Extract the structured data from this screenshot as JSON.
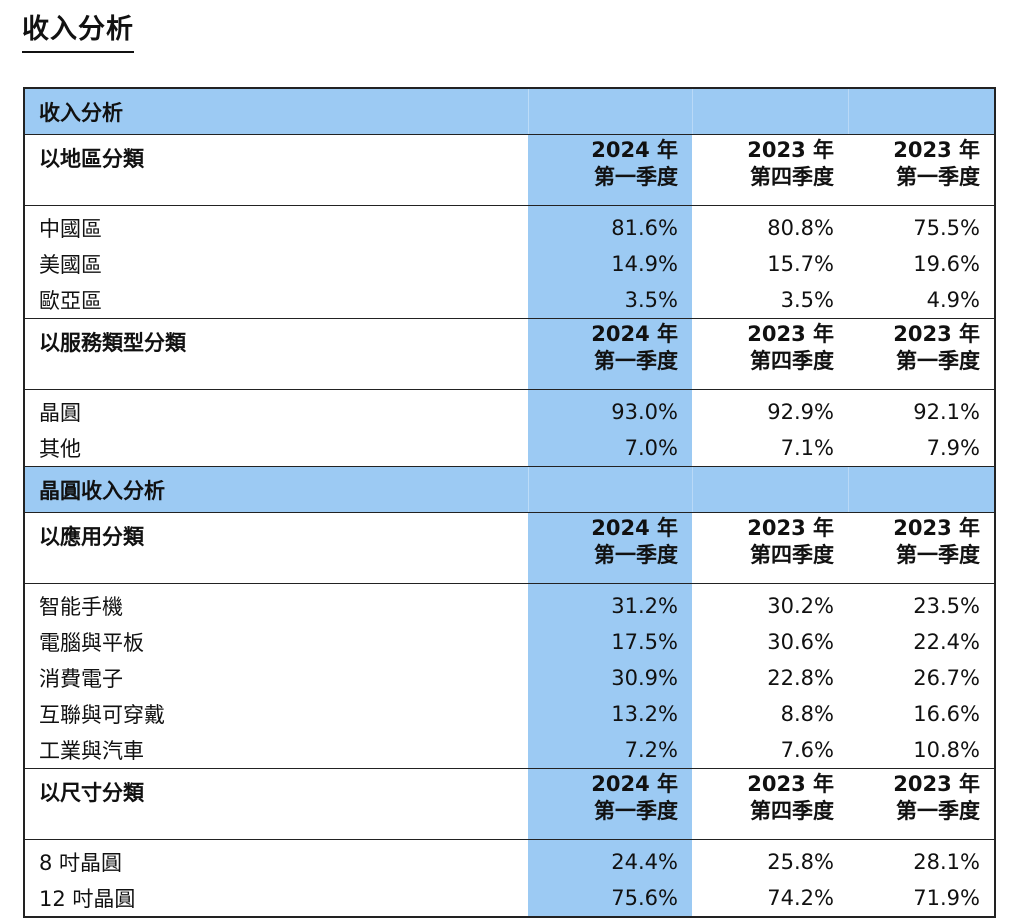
{
  "page_title": "收入分析",
  "period_headers": [
    {
      "year": "2024 年",
      "quarter": "第一季度"
    },
    {
      "year": "2023 年",
      "quarter": "第四季度"
    },
    {
      "year": "2023 年",
      "quarter": "第一季度"
    }
  ],
  "sections": [
    {
      "band": "收入分析",
      "groups": [
        {
          "label": "以地區分類",
          "rows": [
            {
              "label": "中國區",
              "values": [
                "81.6%",
                "80.8%",
                "75.5%"
              ]
            },
            {
              "label": "美國區",
              "values": [
                "14.9%",
                "15.7%",
                "19.6%"
              ]
            },
            {
              "label": "歐亞區",
              "values": [
                "3.5%",
                "3.5%",
                "4.9%"
              ]
            }
          ]
        },
        {
          "label": "以服務類型分類",
          "rows": [
            {
              "label": "晶圓",
              "values": [
                "93.0%",
                "92.9%",
                "92.1%"
              ]
            },
            {
              "label": "其他",
              "values": [
                "7.0%",
                "7.1%",
                "7.9%"
              ]
            }
          ]
        }
      ]
    },
    {
      "band": "晶圓收入分析",
      "groups": [
        {
          "label": "以應用分類",
          "rows": [
            {
              "label": "智能手機",
              "values": [
                "31.2%",
                "30.2%",
                "23.5%"
              ]
            },
            {
              "label": "電腦與平板",
              "values": [
                "17.5%",
                "30.6%",
                "22.4%"
              ]
            },
            {
              "label": "消費電子",
              "values": [
                "30.9%",
                "22.8%",
                "26.7%"
              ]
            },
            {
              "label": "互聯與可穿戴",
              "values": [
                "13.2%",
                "8.8%",
                "16.6%"
              ]
            },
            {
              "label": "工業與汽車",
              "values": [
                "7.2%",
                "7.6%",
                "10.8%"
              ]
            }
          ]
        },
        {
          "label": "以尺寸分類",
          "rows": [
            {
              "label": "8 吋晶圓",
              "values": [
                "24.4%",
                "25.8%",
                "28.1%"
              ]
            },
            {
              "label": "12 吋晶圓",
              "values": [
                "75.6%",
                "74.2%",
                "71.9%"
              ]
            }
          ]
        }
      ]
    }
  ],
  "colors": {
    "highlight": "#9ccaf3",
    "border": "#222222",
    "text": "#111111"
  }
}
